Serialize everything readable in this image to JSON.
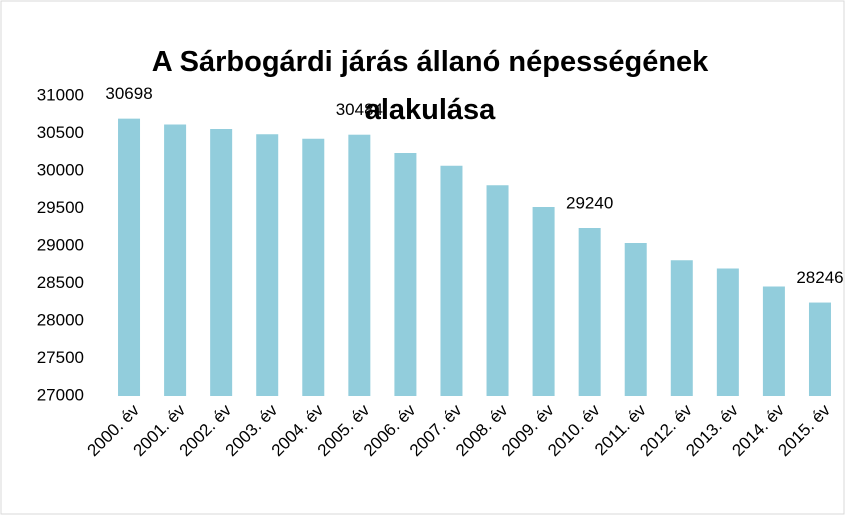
{
  "chart_data": {
    "type": "bar",
    "title": "A Sárbogárdi járás állanó népességének alakulása",
    "categories": [
      "2000. év",
      "2001. év",
      "2002. év",
      "2003. év",
      "2004. év",
      "2005. év",
      "2006. év",
      "2007. év",
      "2008. év",
      "2009. év",
      "2010. év",
      "2011. év",
      "2012. év",
      "2013. év",
      "2014. év",
      "2015. év"
    ],
    "values": [
      30698,
      30620,
      30560,
      30490,
      30430,
      30484,
      30240,
      30070,
      29810,
      29520,
      29240,
      29040,
      28810,
      28700,
      28460,
      28246
    ],
    "value_labels": [
      "30698",
      null,
      null,
      null,
      null,
      "30484",
      null,
      null,
      null,
      null,
      "29240",
      null,
      null,
      null,
      null,
      "28246"
    ],
    "color": "#92cddc",
    "ylim": [
      27000,
      31000
    ],
    "yticks": [
      27000,
      27500,
      28000,
      28500,
      29000,
      29500,
      30000,
      30500,
      31000
    ],
    "grid": false
  }
}
